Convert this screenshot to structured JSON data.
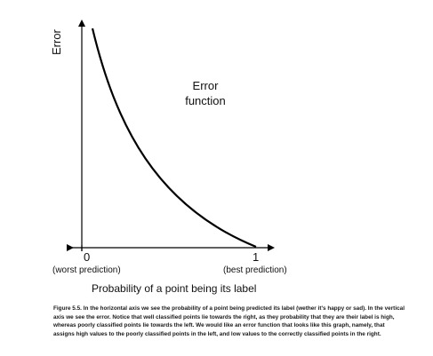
{
  "figure": {
    "y_axis_label": "Error",
    "curve_label_line1": "Error",
    "curve_label_line2": "function",
    "x_tick_0": "0",
    "x_tick_1": "1",
    "x_tick_0_note": "(worst prediction)",
    "x_tick_1_note": "(best prediction)",
    "x_axis_label": "Probability of a point being its label",
    "curve_color": "#000000",
    "axis_color": "#000000"
  },
  "caption": "Figure 5.5. In the horizontal axis we see the probability of a point being predicted its label (wether it's happy or sad). In the vertical axis we see the error. Notice that well classified points lie towards the right, as they probability that they are their label is high, whereas poorly classified points lie towards the left. We would like an error function that looks like this graph, namely, that assigns high values to the poorly classified points in the left, and low values to the correctly classified points in the right."
}
